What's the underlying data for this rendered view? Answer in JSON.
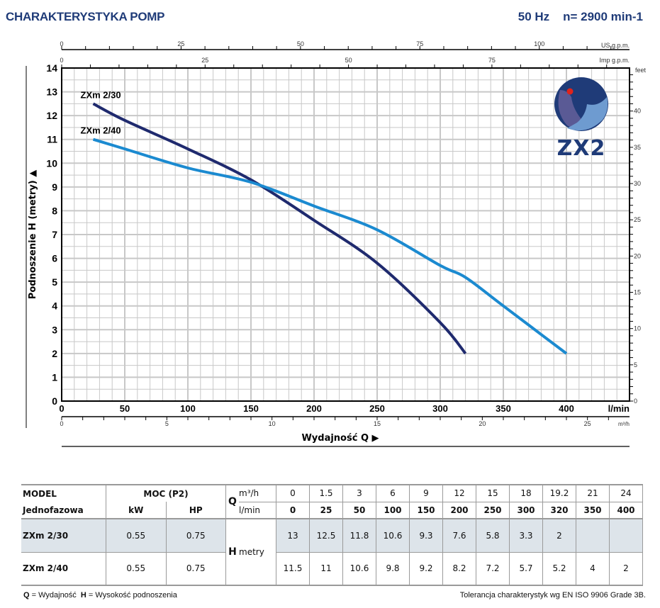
{
  "header": {
    "title": "CHARAKTERYSTYKA POMP",
    "frequency": "50 Hz",
    "speed": "n= 2900 min-1"
  },
  "chart_data": {
    "type": "line",
    "ylabel": "Podnoszenie H (metry)",
    "xlabel": "Wydajność Q",
    "x_unit_label": "l/min",
    "xlim": [
      0,
      450
    ],
    "ylim": [
      0,
      14
    ],
    "grid": true,
    "x_ticks": [
      0,
      50,
      100,
      150,
      200,
      250,
      300,
      350,
      400
    ],
    "y_ticks": [
      0,
      1,
      2,
      3,
      4,
      5,
      6,
      7,
      8,
      9,
      10,
      11,
      12,
      13,
      14
    ],
    "secondary_axes": {
      "m3h": {
        "label": "m³/h",
        "ticks": [
          0,
          5,
          10,
          15,
          20,
          25
        ],
        "factor_to_lmin": 16.6667
      },
      "us_gpm": {
        "label": "US g.p.m.",
        "ticks": [
          0,
          25,
          50,
          75,
          100
        ],
        "factor_to_lmin": 3.785
      },
      "imp_gpm": {
        "label": "Imp g.p.m.",
        "ticks": [
          0,
          25,
          50,
          75
        ],
        "factor_to_lmin": 4.546
      },
      "feet": {
        "label": "feet",
        "ticks": [
          0,
          5,
          10,
          15,
          20,
          25,
          30,
          35,
          40
        ],
        "factor_to_m": 0.3048
      }
    },
    "series": [
      {
        "name": "ZXm 2/30",
        "color": "#1f2a6e",
        "x": [
          25,
          50,
          100,
          150,
          200,
          250,
          300,
          320
        ],
        "y": [
          12.5,
          11.8,
          10.6,
          9.3,
          7.6,
          5.8,
          3.3,
          2
        ]
      },
      {
        "name": "ZXm 2/40",
        "color": "#1b8ad0",
        "x": [
          25,
          50,
          100,
          150,
          200,
          250,
          300,
          320,
          350,
          400
        ],
        "y": [
          11,
          10.6,
          9.8,
          9.2,
          8.2,
          7.2,
          5.7,
          5.2,
          4,
          2
        ]
      }
    ]
  },
  "logo": {
    "text": "ZX2"
  },
  "table": {
    "model_header": "MODEL",
    "type_header": "Jednofazowa",
    "power_header": "MOC (P2)",
    "kw_header": "kW",
    "hp_header": "HP",
    "q_label": "Q",
    "q_unit_m3h": "m³/h",
    "q_unit_lmin": "l/min",
    "h_label": "H",
    "h_unit": "metry",
    "q_m3h": [
      "0",
      "1.5",
      "3",
      "6",
      "9",
      "12",
      "15",
      "18",
      "19.2",
      "21",
      "24"
    ],
    "q_lmin": [
      "0",
      "25",
      "50",
      "100",
      "150",
      "200",
      "250",
      "300",
      "320",
      "350",
      "400"
    ],
    "rows": [
      {
        "model": "ZXm 2/30",
        "kw": "0.55",
        "hp": "0.75",
        "h": [
          "13",
          "12.5",
          "11.8",
          "10.6",
          "9.3",
          "7.6",
          "5.8",
          "3.3",
          "2",
          "",
          ""
        ]
      },
      {
        "model": "ZXm 2/40",
        "kw": "0.55",
        "hp": "0.75",
        "h": [
          "11.5",
          "11",
          "10.6",
          "9.8",
          "9.2",
          "8.2",
          "7.2",
          "5.7",
          "5.2",
          "4",
          "2"
        ]
      }
    ]
  },
  "footer": {
    "q_abbr": "Q",
    "q_text": " = Wydajność  ",
    "h_abbr": "H",
    "h_text": " = Wysokość podnoszenia",
    "tolerance": "Tolerancja charakterystyk wg EN ISO 9906 Grade 3B."
  },
  "colors": {
    "title": "#1f3b78",
    "series_dark": "#1f2a6e",
    "series_light": "#1b8ad0",
    "table_highlight": "#dde4ea"
  }
}
